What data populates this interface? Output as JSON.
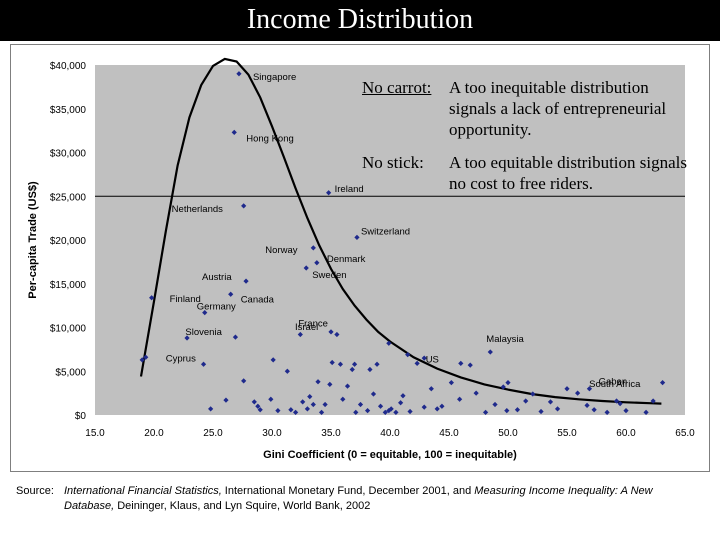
{
  "header": {
    "title": "Income Distribution"
  },
  "chart_data": {
    "type": "scatter",
    "title": "",
    "xlabel": "Gini Coefficient (0 = equitable, 100 = inequitable)",
    "ylabel": "Per-capita Trade (US$)",
    "xlim": [
      15,
      65
    ],
    "ylim": [
      0,
      40000
    ],
    "x_ticks": [
      "15.0",
      "20.0",
      "25.0",
      "30.0",
      "35.0",
      "40.0",
      "45.0",
      "50.0",
      "55.0",
      "60.0",
      "65.0"
    ],
    "y_ticks": [
      "$0",
      "$5,000",
      "$10,000",
      "$15,000",
      "$20,000",
      "$25,000",
      "$30,000",
      "$35,000",
      "$40,000"
    ],
    "reference_line_y": 25000,
    "grid": false,
    "colors": {
      "plot_bg": "#c0c0c0",
      "marker": "#1f2a8c",
      "curve": "#000000"
    },
    "labeled_points": [
      {
        "label": "Singapore",
        "x": 27.2,
        "y": 39000
      },
      {
        "label": "Hong Kong",
        "x": 26.8,
        "y": 32300
      },
      {
        "label": "Ireland",
        "x": 34.8,
        "y": 25400
      },
      {
        "label": "Netherlands",
        "x": 27.6,
        "y": 23900
      },
      {
        "label": "Switzerland",
        "x": 37.2,
        "y": 20300
      },
      {
        "label": "Norway",
        "x": 33.5,
        "y": 19100
      },
      {
        "label": "Denmark",
        "x": 33.8,
        "y": 17400
      },
      {
        "label": "Sweden",
        "x": 32.9,
        "y": 16800
      },
      {
        "label": "Austria",
        "x": 27.8,
        "y": 15300
      },
      {
        "label": "Finland",
        "x": 19.8,
        "y": 13400
      },
      {
        "label": "Canada",
        "x": 26.5,
        "y": 13800
      },
      {
        "label": "Germany",
        "x": 24.3,
        "y": 11700
      },
      {
        "label": "Israel",
        "x": 35.0,
        "y": 9500
      },
      {
        "label": "France",
        "x": 32.4,
        "y": 9200
      },
      {
        "label": "Slovenia",
        "x": 26.9,
        "y": 8900
      },
      {
        "label": "Cyprus",
        "x": 19.3,
        "y": 6600
      },
      {
        "label": "Malaysia",
        "x": 48.5,
        "y": 7200
      },
      {
        "label": "US",
        "x": 41.5,
        "y": 6900
      },
      {
        "label": "Gabon",
        "x": 63.1,
        "y": 3700
      },
      {
        "label": "South Africa",
        "x": 62.3,
        "y": 1600
      }
    ],
    "other_points": [
      [
        24.2,
        5800
      ],
      [
        26.1,
        1700
      ],
      [
        24.8,
        700
      ],
      [
        27.6,
        3900
      ],
      [
        28.5,
        1500
      ],
      [
        28.8,
        1000
      ],
      [
        29.0,
        600
      ],
      [
        29.9,
        1800
      ],
      [
        30.5,
        500
      ],
      [
        31.3,
        5000
      ],
      [
        31.6,
        600
      ],
      [
        32.0,
        300
      ],
      [
        32.6,
        1500
      ],
      [
        33.0,
        700
      ],
      [
        33.2,
        2100
      ],
      [
        33.5,
        1200
      ],
      [
        33.9,
        3800
      ],
      [
        34.2,
        300
      ],
      [
        34.5,
        1200
      ],
      [
        34.9,
        3500
      ],
      [
        35.1,
        6000
      ],
      [
        35.8,
        5800
      ],
      [
        36.0,
        1800
      ],
      [
        36.4,
        3300
      ],
      [
        36.8,
        5200
      ],
      [
        37.1,
        300
      ],
      [
        37.5,
        1200
      ],
      [
        38.1,
        500
      ],
      [
        38.6,
        2400
      ],
      [
        38.9,
        5800
      ],
      [
        39.2,
        1000
      ],
      [
        39.6,
        300
      ],
      [
        39.9,
        500
      ],
      [
        40.1,
        700
      ],
      [
        40.5,
        300
      ],
      [
        40.9,
        1400
      ],
      [
        41.1,
        2200
      ],
      [
        41.7,
        400
      ],
      [
        42.3,
        5900
      ],
      [
        42.9,
        900
      ],
      [
        43.5,
        3000
      ],
      [
        44.0,
        700
      ],
      [
        44.4,
        1000
      ],
      [
        45.2,
        3700
      ],
      [
        45.9,
        1800
      ],
      [
        46.8,
        5700
      ],
      [
        47.3,
        2500
      ],
      [
        48.1,
        300
      ],
      [
        48.9,
        1200
      ],
      [
        49.6,
        3200
      ],
      [
        49.9,
        500
      ],
      [
        50.8,
        600
      ],
      [
        51.5,
        1600
      ],
      [
        52.1,
        2400
      ],
      [
        52.8,
        400
      ],
      [
        53.6,
        1500
      ],
      [
        54.2,
        700
      ],
      [
        55.0,
        3000
      ],
      [
        55.9,
        2500
      ],
      [
        56.7,
        1100
      ],
      [
        57.3,
        600
      ],
      [
        58.4,
        300
      ],
      [
        59.2,
        1600
      ],
      [
        60.0,
        500
      ],
      [
        61.7,
        300
      ],
      [
        38.3,
        5200
      ],
      [
        30.1,
        6300
      ],
      [
        37.0,
        5800
      ],
      [
        35.5,
        9200
      ],
      [
        39.9,
        8200
      ],
      [
        42.9,
        6500
      ],
      [
        46.0,
        5900
      ],
      [
        50.0,
        3700
      ],
      [
        56.9,
        3000
      ],
      [
        59.5,
        1300
      ],
      [
        22.8,
        8800
      ],
      [
        19.0,
        6300
      ]
    ],
    "fit_curve": [
      [
        18.9,
        4400
      ],
      [
        20.0,
        13000
      ],
      [
        21.0,
        21000
      ],
      [
        22.0,
        28500
      ],
      [
        23.0,
        34000
      ],
      [
        24.0,
        37700
      ],
      [
        25.0,
        39900
      ],
      [
        26.0,
        40700
      ],
      [
        27.0,
        40400
      ],
      [
        28.0,
        38900
      ],
      [
        29.0,
        36300
      ],
      [
        30.0,
        33000
      ],
      [
        31.0,
        29500
      ],
      [
        32.0,
        25900
      ],
      [
        33.0,
        22500
      ],
      [
        34.0,
        19400
      ],
      [
        35.0,
        16700
      ],
      [
        36.0,
        14400
      ],
      [
        37.0,
        12500
      ],
      [
        38.0,
        10900
      ],
      [
        39.0,
        9500
      ],
      [
        40.0,
        8400
      ],
      [
        42.0,
        6600
      ],
      [
        44.0,
        5300
      ],
      [
        46.0,
        4300
      ],
      [
        48.0,
        3500
      ],
      [
        50.0,
        2900
      ],
      [
        52.0,
        2400
      ],
      [
        54.0,
        2050
      ],
      [
        56.0,
        1800
      ],
      [
        58.0,
        1600
      ],
      [
        60.0,
        1450
      ],
      [
        62.0,
        1350
      ],
      [
        63.0,
        1300
      ]
    ]
  },
  "notes": {
    "carrot_key": "No carrot:",
    "carrot_text": "A too inequitable distribution signals a lack of entrepreneurial opportunity.",
    "stick_key": "No stick:",
    "stick_text": "A too equitable distribution signals no cost to free riders."
  },
  "source": {
    "lead": "Source:",
    "ref1_italic": "International Financial Statistics,",
    "ref1_rest": " International Monetary Fund, December 2001, and ",
    "ref2_italic": "Measuring Income Inequality: A New Database,",
    "ref2_rest": " Deininger, Klaus, and Lyn Squire, World Bank, 2002"
  }
}
